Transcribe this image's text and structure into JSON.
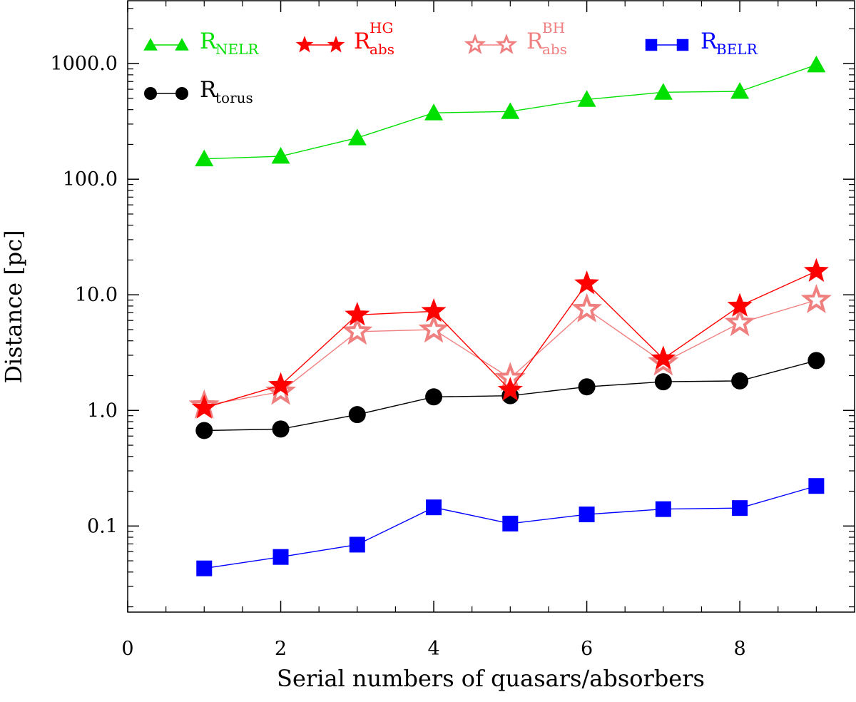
{
  "chart_data": {
    "type": "line",
    "title": "",
    "xlabel": "Serial numbers of quasars/absorbers",
    "ylabel": "Distance [pc]",
    "xlim": [
      0,
      9.5
    ],
    "ylim": [
      0.018,
      3500
    ],
    "y_scale": "log",
    "grid": false,
    "legend_position": "top",
    "x_ticks": [
      0,
      2,
      4,
      6,
      8
    ],
    "y_ticks": [
      0.1,
      1.0,
      10.0,
      100.0,
      1000.0
    ],
    "y_tick_labels": [
      "0.1",
      "1.0",
      "10.0",
      "100.0",
      "1000.0"
    ],
    "x": [
      1,
      2,
      3,
      4,
      5,
      6,
      7,
      8,
      9
    ],
    "series": [
      {
        "key": "nelr",
        "legend_main": "R",
        "legend_sub": "NELR",
        "legend_sup": "",
        "color": "#00e000",
        "marker": "triangle-filled",
        "values": [
          150,
          158,
          228,
          375,
          385,
          490,
          565,
          575,
          975
        ]
      },
      {
        "key": "abs_hg",
        "legend_main": "R",
        "legend_sub": "abs",
        "legend_sup": "HG",
        "color": "#ff0000",
        "marker": "star-filled",
        "values": [
          1.05,
          1.65,
          6.7,
          7.2,
          1.5,
          12.5,
          2.8,
          8.0,
          16.0
        ]
      },
      {
        "key": "abs_bh",
        "legend_main": "R",
        "legend_sub": "abs",
        "legend_sup": "BH",
        "color": "#f08080",
        "marker": "star-open",
        "values": [
          1.1,
          1.45,
          4.8,
          5.0,
          1.9,
          7.5,
          2.6,
          5.7,
          9.0
        ]
      },
      {
        "key": "belr",
        "legend_main": "R",
        "legend_sub": "BELR",
        "legend_sup": "",
        "color": "#0000ff",
        "marker": "square-filled",
        "values": [
          0.043,
          0.054,
          0.069,
          0.145,
          0.105,
          0.126,
          0.14,
          0.143,
          0.222
        ]
      },
      {
        "key": "torus",
        "legend_main": "R",
        "legend_sub": "torus",
        "legend_sup": "",
        "color": "#000000",
        "marker": "circle-filled",
        "values": [
          0.67,
          0.69,
          0.92,
          1.31,
          1.34,
          1.6,
          1.77,
          1.8,
          2.7
        ]
      }
    ]
  }
}
